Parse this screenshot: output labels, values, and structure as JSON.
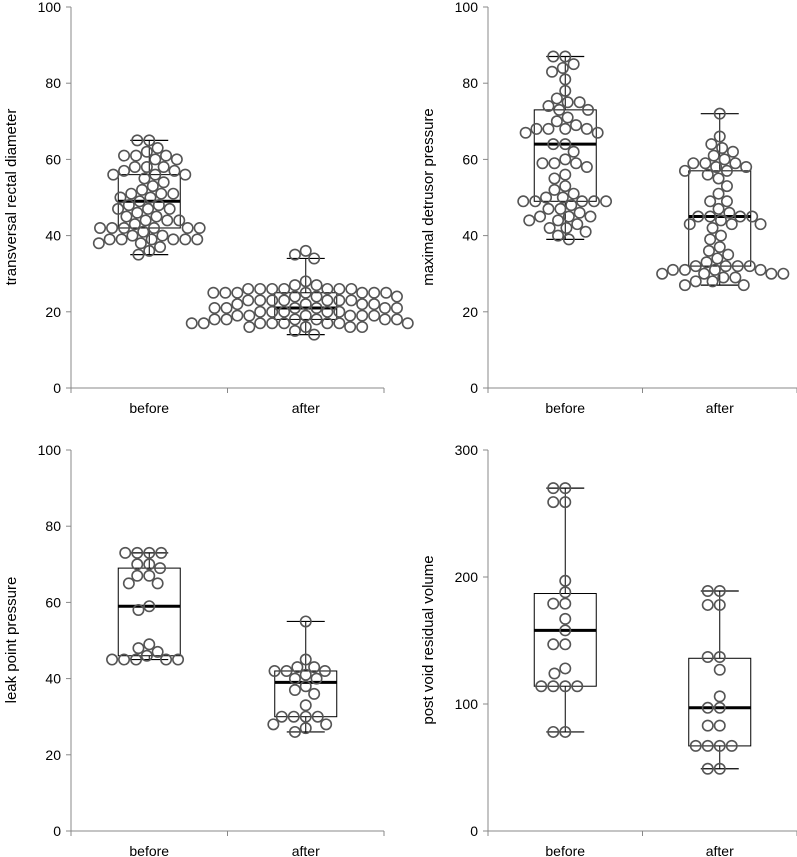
{
  "chart_data": [
    {
      "type": "box-swarm",
      "ylabel": "transversal rectal diameter",
      "ylim": [
        0,
        100
      ],
      "yticks": [
        0,
        20,
        40,
        60,
        80,
        100
      ],
      "categories": [
        "before",
        "after"
      ],
      "boxes": [
        {
          "category": "before",
          "whisker_low": 35,
          "q1": 42,
          "median": 49,
          "q3": 56,
          "whisker_high": 65
        },
        {
          "category": "after",
          "whisker_low": 14,
          "q1": 18,
          "median": 21,
          "q3": 25,
          "whisker_high": 34
        }
      ],
      "points": [
        [
          65,
          65,
          63,
          62,
          61,
          61,
          61,
          60,
          60,
          58,
          58,
          58,
          57,
          57,
          56,
          56,
          56,
          55,
          54,
          53,
          52,
          51,
          51,
          51,
          50,
          50,
          49,
          48,
          48,
          47,
          47,
          47,
          46,
          45,
          45,
          44,
          44,
          44,
          43,
          42,
          42,
          42,
          42,
          42,
          42,
          41,
          40,
          40,
          39,
          39,
          39,
          39,
          39,
          39,
          38,
          38,
          37,
          36,
          35
        ],
        [
          36,
          35,
          34,
          28,
          27,
          27,
          26,
          26,
          26,
          26,
          26,
          26,
          26,
          25,
          25,
          25,
          25,
          25,
          25,
          25,
          24,
          24,
          24,
          23,
          23,
          23,
          23,
          23,
          23,
          23,
          22,
          22,
          22,
          22,
          21,
          21,
          21,
          21,
          21,
          21,
          20,
          20,
          20,
          20,
          20,
          19,
          19,
          19,
          19,
          19,
          19,
          18,
          18,
          18,
          18,
          18,
          18,
          17,
          17,
          17,
          17,
          17,
          17,
          17,
          17,
          16,
          16,
          16,
          16,
          15,
          14
        ]
      ]
    },
    {
      "type": "box-swarm",
      "ylabel": "maximal detrusor pressure",
      "ylim": [
        0,
        100
      ],
      "yticks": [
        0,
        20,
        40,
        60,
        80,
        100
      ],
      "categories": [
        "before",
        "after"
      ],
      "boxes": [
        {
          "category": "before",
          "whisker_low": 39,
          "q1": 49,
          "median": 64,
          "q3": 73,
          "whisker_high": 87
        },
        {
          "category": "after",
          "whisker_low": 27,
          "q1": 32,
          "median": 45,
          "q3": 57,
          "whisker_high": 72
        }
      ],
      "points": [
        [
          87,
          87,
          85,
          84,
          83,
          81,
          78,
          76,
          75,
          75,
          74,
          73,
          73,
          71,
          70,
          69,
          68,
          68,
          68,
          68,
          67,
          67,
          64,
          64,
          62,
          60,
          59,
          59,
          59,
          58,
          56,
          55,
          53,
          52,
          51,
          50,
          50,
          49,
          49,
          49,
          49,
          49,
          48,
          47,
          47,
          46,
          45,
          45,
          45,
          44,
          44,
          43,
          42,
          42,
          41,
          40,
          39
        ],
        [
          72,
          66,
          64,
          63,
          62,
          61,
          60,
          59,
          59,
          59,
          58,
          58,
          57,
          57,
          56,
          55,
          53,
          51,
          49,
          49,
          47,
          46,
          45,
          45,
          45,
          45,
          44,
          43,
          43,
          43,
          42,
          40,
          39,
          37,
          36,
          35,
          34,
          33,
          32,
          32,
          32,
          32,
          31,
          31,
          31,
          31,
          30,
          30,
          30,
          30,
          29,
          29,
          28,
          28,
          27,
          27
        ]
      ]
    },
    {
      "type": "box-swarm",
      "ylabel": "leak point pressure",
      "ylim": [
        0,
        100
      ],
      "yticks": [
        0,
        20,
        40,
        60,
        80,
        100
      ],
      "categories": [
        "before",
        "after"
      ],
      "boxes": [
        {
          "category": "before",
          "whisker_low": 45,
          "q1": 46,
          "median": 59,
          "q3": 69,
          "whisker_high": 73
        },
        {
          "category": "after",
          "whisker_low": 26,
          "q1": 30,
          "median": 39,
          "q3": 42,
          "whisker_high": 55
        }
      ],
      "points": [
        [
          73,
          73,
          73,
          73,
          70,
          70,
          69,
          67,
          67,
          65,
          65,
          59,
          58,
          49,
          48,
          47,
          46,
          45,
          45,
          45,
          45,
          45
        ],
        [
          55,
          45,
          43,
          43,
          42,
          42,
          42,
          41,
          40,
          40,
          38,
          37,
          36,
          33,
          30,
          30,
          30,
          30,
          28,
          28,
          27,
          26
        ]
      ]
    },
    {
      "type": "box-swarm",
      "ylabel": "post void residual volume",
      "ylim": [
        0,
        300
      ],
      "yticks": [
        0,
        100,
        200,
        300
      ],
      "categories": [
        "before",
        "after"
      ],
      "boxes": [
        {
          "category": "before",
          "whisker_low": 78,
          "q1": 114,
          "median": 158,
          "q3": 187,
          "whisker_high": 270
        },
        {
          "category": "after",
          "whisker_low": 49,
          "q1": 67,
          "median": 97,
          "q3": 136,
          "whisker_high": 189
        }
      ],
      "points": [
        [
          270,
          270,
          259,
          259,
          197,
          188,
          179,
          179,
          167,
          158,
          147,
          147,
          128,
          124,
          114,
          114,
          114,
          114,
          78,
          78
        ],
        [
          189,
          189,
          178,
          178,
          137,
          137,
          127,
          106,
          97,
          97,
          83,
          83,
          67,
          67,
          67,
          67,
          49,
          49
        ]
      ]
    }
  ]
}
